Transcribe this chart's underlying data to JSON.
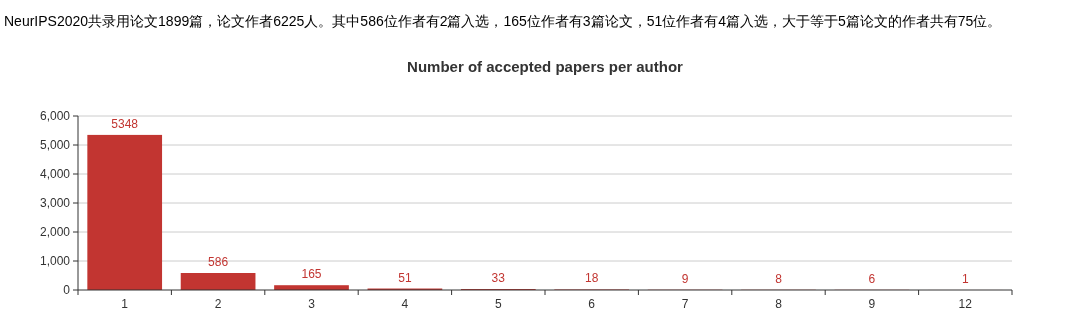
{
  "chart_data": {
    "type": "bar",
    "title": "Number of accepted papers per author",
    "annotations": [
      "NeurIPS2020共录用论文1899篇，论文作者6225人。其中586位作者有2篇入选，165位作者有3篇论文，51位作者有4篇入选，大于等于5篇论文的作者共有75位。"
    ],
    "categories": [
      "1",
      "2",
      "3",
      "4",
      "5",
      "6",
      "7",
      "8",
      "9",
      "12"
    ],
    "values": [
      5348,
      586,
      165,
      51,
      33,
      18,
      9,
      8,
      6,
      1
    ],
    "color": "#c23531",
    "ylim": [
      0,
      6000
    ],
    "yticks": [
      0,
      {
        "value": 1000,
        "label": "1,000"
      },
      {
        "value": 2000,
        "label": "2,000"
      },
      {
        "value": 3000,
        "label": "3,000"
      },
      {
        "value": 4000,
        "label": "4,000"
      },
      {
        "value": 5000,
        "label": "5,000"
      },
      {
        "value": 6000,
        "label": "6,000"
      }
    ],
    "grid": "y",
    "data_labels": true
  }
}
